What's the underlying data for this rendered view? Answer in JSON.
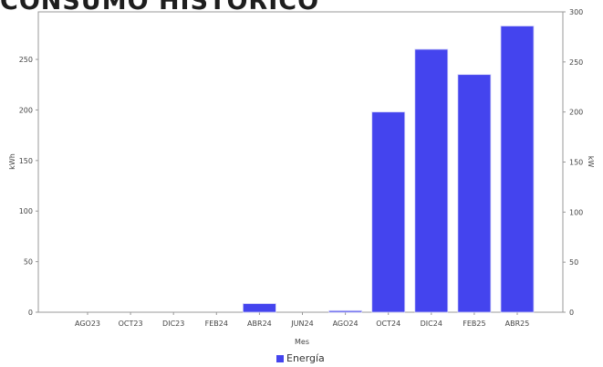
{
  "page": {
    "heading": "CONSUMO HISTORICO"
  },
  "chart_data": {
    "type": "bar",
    "categories": [
      "AGO23",
      "OCT23",
      "DIC23",
      "FEB24",
      "ABR24",
      "JUN24",
      "AGO24",
      "OCT24",
      "DIC24",
      "FEB25",
      "ABR25"
    ],
    "series": [
      {
        "name": "Energía",
        "values": [
          0,
          0,
          0,
          0,
          8.5,
          0,
          1.5,
          198,
          260,
          235,
          283
        ]
      }
    ],
    "xlabel": "Mes",
    "ylabel": "kWh",
    "y2label": "kW",
    "ylim": [
      0,
      297
    ],
    "y2lim": [
      0,
      300
    ],
    "yticks": [
      "0",
      "50",
      "100",
      "150",
      "200",
      "250"
    ],
    "y2ticks": [
      "0",
      "50",
      "100",
      "150",
      "200",
      "250",
      "300"
    ],
    "bar_color": "#4444ee",
    "grid": false,
    "legend_position": "bottom"
  }
}
